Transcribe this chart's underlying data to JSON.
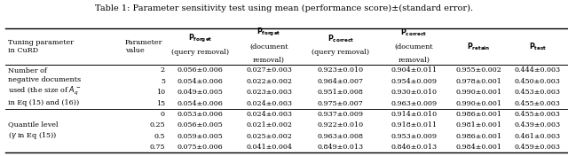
{
  "title": "Table 1: Parameter sensitivity test using mean (performance score)±(standard error).",
  "col_headers_line1": [
    "Tuning parameter",
    "Parameter",
    "P_forget",
    "P_forget",
    "P_correct",
    "P_correct",
    "P_retain",
    "P_test"
  ],
  "col_headers_line2": [
    "in CuRD",
    "value",
    "(query removal)",
    "(document",
    "(query removal)",
    "(document",
    "",
    ""
  ],
  "col_headers_line3": [
    "",
    "",
    "",
    "removal)",
    "",
    "removal)",
    "",
    ""
  ],
  "col_headers_bold": [
    false,
    false,
    true,
    true,
    true,
    true,
    true,
    true
  ],
  "col_headers_sub": [
    "",
    "",
    "forget",
    "forget",
    "correct",
    "correct",
    "retain",
    "test"
  ],
  "row_groups": [
    {
      "label_lines": [
        "Number of",
        "negative documents",
        "used (the size of A_q^-",
        "in Eq (15) and (16))"
      ],
      "rows": [
        [
          "2",
          "0.056±0.006",
          "0.027±0.003",
          "0.923±0.010",
          "0.904±0.011",
          "0.955±0.002",
          "0.444±0.003"
        ],
        [
          "5",
          "0.054±0.006",
          "0.022±0.002",
          "0.964±0.007",
          "0.954±0.009",
          "0.978±0.001",
          "0.450±0.003"
        ],
        [
          "10",
          "0.049±0.005",
          "0.023±0.003",
          "0.951±0.008",
          "0.930±0.010",
          "0.990±0.001",
          "0.453±0.003"
        ],
        [
          "15",
          "0.054±0.006",
          "0.024±0.003",
          "0.975±0.007",
          "0.963±0.009",
          "0.990±0.001",
          "0.455±0.003"
        ]
      ]
    },
    {
      "label_lines": [
        "Quantile level",
        "(γ in Eq (15))"
      ],
      "rows": [
        [
          "0",
          "0.053±0.006",
          "0.024±0.003",
          "0.937±0.009",
          "0.914±0.010",
          "0.986±0.001",
          "0.455±0.003"
        ],
        [
          "0.25",
          "0.056±0.005",
          "0.021±0.002",
          "0.922±0.010",
          "0.918±0.011",
          "0.981±0.001",
          "0.439±0.003"
        ],
        [
          "0.5",
          "0.059±0.005",
          "0.025±0.002",
          "0.963±0.008",
          "0.953±0.009",
          "0.986±0.001",
          "0.461±0.003"
        ],
        [
          "0.75",
          "0.075±0.006",
          "0.041±0.004",
          "0.849±0.013",
          "0.846±0.013",
          "0.984±0.001",
          "0.459±0.003"
        ]
      ]
    }
  ],
  "font_size": 5.8,
  "title_font_size": 7.0
}
